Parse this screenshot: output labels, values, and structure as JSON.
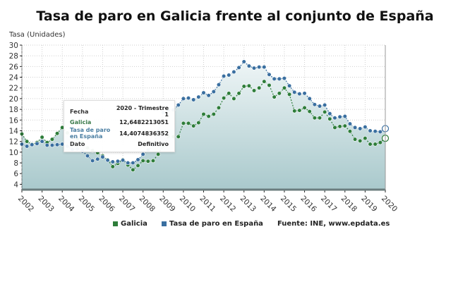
{
  "title": "Tasa de paro en Galicia frente al conjunto de España",
  "y_axis_label": "Tasa (Unidades)",
  "legend": [
    {
      "label": "Galicia",
      "color": "#2e7d3a"
    },
    {
      "label": "Tasa de paro en España",
      "color": "#3a6fa0"
    }
  ],
  "source": "Fuente: INE, www.epdata.es",
  "tooltip": {
    "fecha_label": "Fecha",
    "fecha_value": "2020 - Trimestre 1",
    "galicia_label": "Galicia",
    "galicia_value": "12,6482213051",
    "espana_label": "Tasa de paro en España",
    "espana_value": "14,4074836352",
    "dato_label": "Dato",
    "dato_value": "Definitivo"
  },
  "chart_data": {
    "type": "line",
    "title": "Tasa de paro en Galicia frente al conjunto de España",
    "xlabel": "",
    "ylabel": "Tasa (Unidades)",
    "ylim": [
      3,
      30
    ],
    "yticks": [
      4,
      6,
      8,
      10,
      12,
      14,
      16,
      18,
      20,
      22,
      24,
      26,
      28,
      30
    ],
    "xticks": [
      "2002",
      "2003",
      "2004",
      "2005",
      "2006",
      "2007",
      "2008",
      "2009",
      "2010",
      "2011",
      "2012",
      "2013",
      "2014",
      "2015",
      "2016",
      "2017",
      "2018",
      "2019",
      "2020"
    ],
    "grid": true,
    "legend_position": "bottom",
    "x": [
      "2002T1",
      "2002T2",
      "2002T3",
      "2002T4",
      "2003T1",
      "2003T2",
      "2003T3",
      "2003T4",
      "2004T1",
      "2004T2",
      "2004T3",
      "2004T4",
      "2005T1",
      "2005T2",
      "2005T3",
      "2005T4",
      "2006T1",
      "2006T2",
      "2006T3",
      "2006T4",
      "2007T1",
      "2007T2",
      "2007T3",
      "2007T4",
      "2008T1",
      "2008T2",
      "2008T3",
      "2008T4",
      "2009T1",
      "2009T2",
      "2009T3",
      "2009T4",
      "2010T1",
      "2010T2",
      "2010T3",
      "2010T4",
      "2011T1",
      "2011T2",
      "2011T3",
      "2011T4",
      "2012T1",
      "2012T2",
      "2012T3",
      "2012T4",
      "2013T1",
      "2013T2",
      "2013T3",
      "2013T4",
      "2014T1",
      "2014T2",
      "2014T3",
      "2014T4",
      "2015T1",
      "2015T2",
      "2015T3",
      "2015T4",
      "2016T1",
      "2016T2",
      "2016T3",
      "2016T4",
      "2017T1",
      "2017T2",
      "2017T3",
      "2017T4",
      "2018T1",
      "2018T2",
      "2018T3",
      "2018T4",
      "2019T1",
      "2019T2",
      "2019T3",
      "2019T4",
      "2020T1"
    ],
    "series": [
      {
        "name": "Galicia",
        "color": "#2e7d3a",
        "values": [
          13.4,
          12.0,
          11.5,
          11.8,
          12.8,
          11.8,
          12.4,
          13.5,
          14.6,
          13.6,
          12.8,
          12.5,
          11.8,
          10.8,
          10.3,
          9.9,
          9.3,
          8.6,
          7.3,
          7.9,
          8.6,
          7.6,
          6.7,
          7.5,
          8.4,
          8.3,
          8.4,
          9.6,
          11.2,
          12.9,
          12.9,
          12.9,
          15.4,
          15.4,
          14.9,
          15.5,
          17.1,
          16.7,
          17.1,
          18.3,
          20.1,
          21.0,
          20.0,
          21.0,
          22.3,
          22.4,
          21.5,
          22.0,
          23.2,
          22.5,
          20.3,
          21.0,
          22.0,
          20.8,
          17.7,
          17.8,
          18.3,
          17.6,
          16.4,
          16.4,
          17.5,
          16.2,
          14.6,
          14.8,
          14.9,
          13.9,
          12.4,
          12.1,
          12.6,
          11.5,
          11.5,
          11.8,
          12.6
        ]
      },
      {
        "name": "Tasa de paro en España",
        "color": "#3a6fa0",
        "values": [
          11.5,
          11.1,
          11.4,
          11.6,
          12.0,
          11.3,
          11.3,
          11.4,
          11.5,
          11.1,
          10.5,
          10.6,
          10.2,
          9.3,
          8.4,
          8.7,
          9.1,
          8.5,
          8.2,
          8.3,
          8.5,
          8.0,
          8.0,
          8.6,
          9.6,
          10.4,
          11.3,
          13.9,
          17.4,
          17.9,
          17.9,
          18.8,
          20.0,
          20.1,
          19.8,
          20.3,
          21.1,
          20.6,
          21.3,
          22.6,
          24.2,
          24.4,
          25.0,
          25.8,
          26.9,
          26.1,
          25.7,
          25.9,
          25.9,
          24.5,
          23.7,
          23.7,
          23.8,
          22.4,
          21.2,
          20.9,
          21.0,
          20.0,
          18.9,
          18.6,
          18.8,
          17.2,
          16.4,
          16.6,
          16.7,
          15.3,
          14.6,
          14.4,
          14.7,
          14.0,
          13.9,
          13.8,
          14.4
        ]
      }
    ]
  }
}
